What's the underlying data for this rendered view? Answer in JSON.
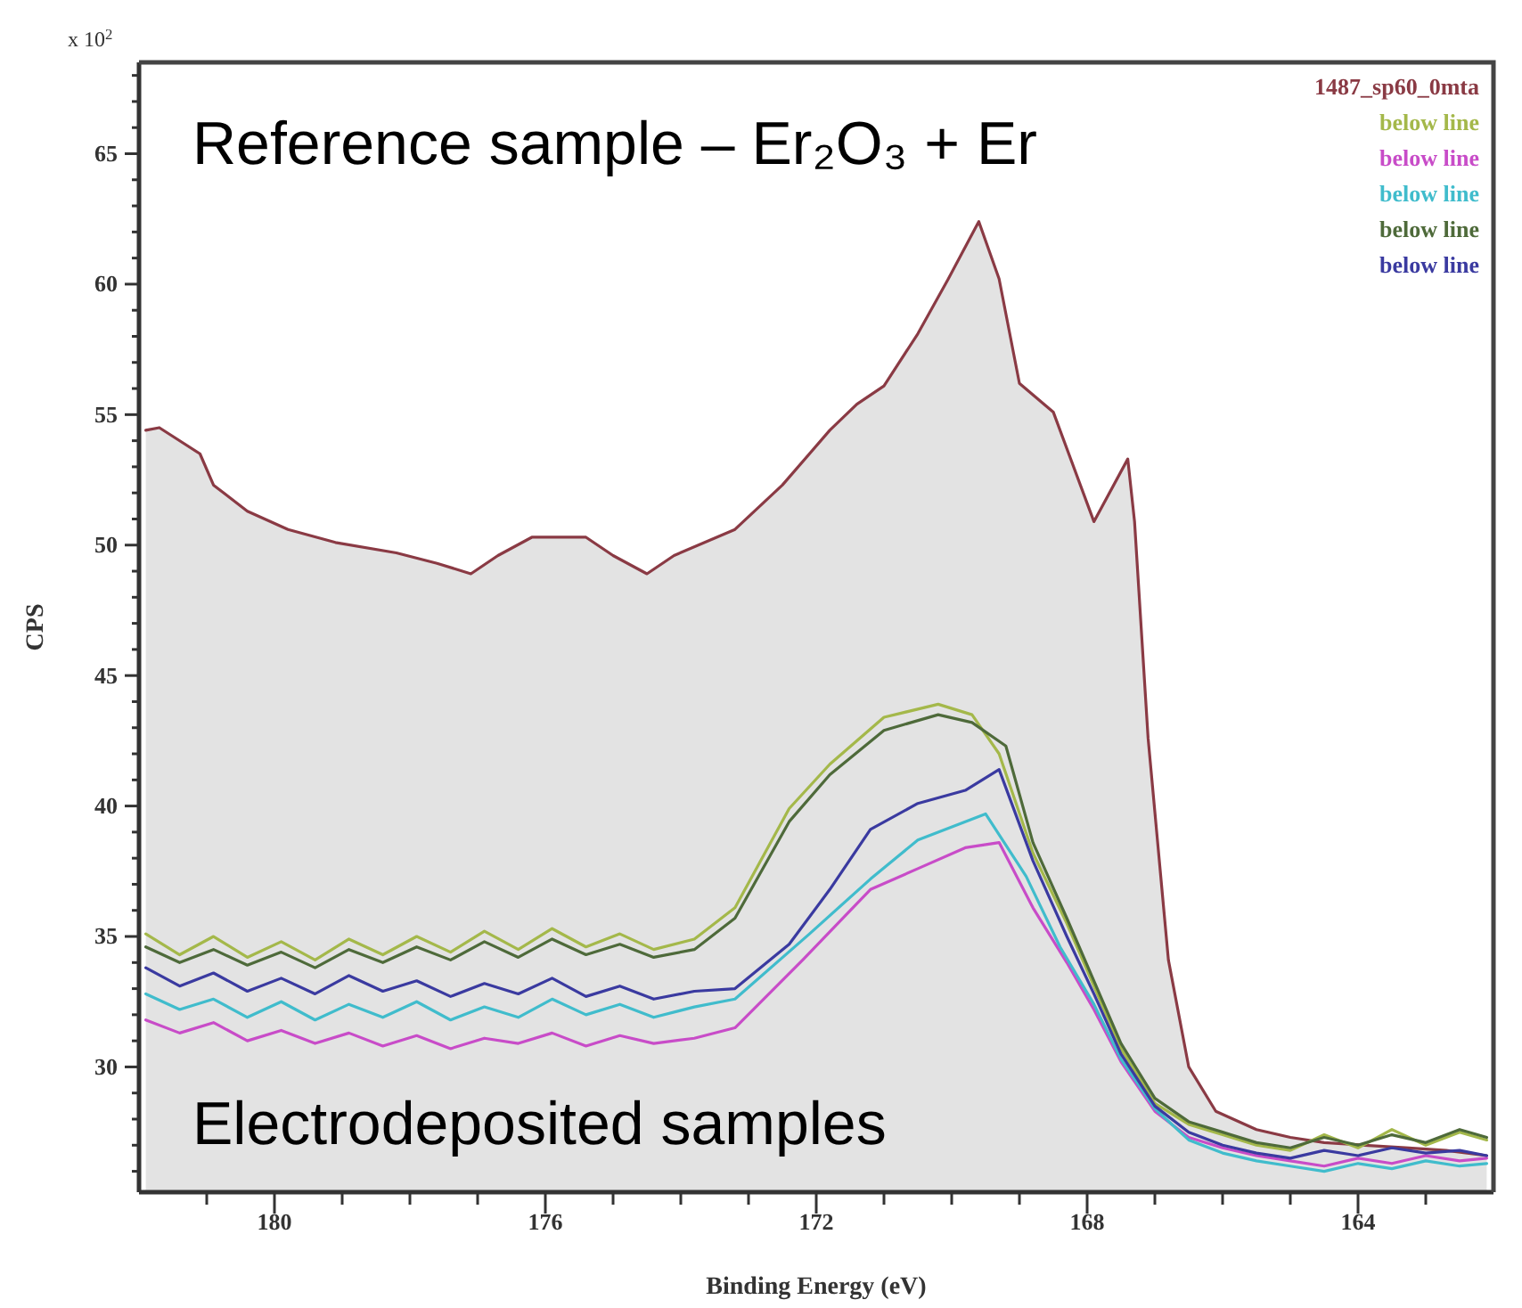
{
  "chart_data": {
    "type": "line",
    "xlabel": "Binding Energy (eV)",
    "ylabel": "CPS",
    "annotations": [
      "Reference sample – Er₂O₃ + Er",
      "Electrodeposited samples",
      "x 10$^{2}$"
    ],
    "xlim": [
      182,
      162
    ],
    "ylim": [
      25.2,
      68.5
    ],
    "xticks": [
      {
        "value": 181,
        "label": null
      },
      180,
      {
        "value": 179,
        "label": null
      },
      {
        "value": 178,
        "label": null
      },
      {
        "value": 177,
        "label": null
      },
      176,
      {
        "value": 175,
        "label": null
      },
      {
        "value": 174,
        "label": null
      },
      {
        "value": 173,
        "label": null
      },
      172,
      {
        "value": 171,
        "label": null
      },
      {
        "value": 170,
        "label": null
      },
      {
        "value": 169,
        "label": null
      },
      168,
      {
        "value": 167,
        "label": null
      },
      {
        "value": 166,
        "label": null
      },
      {
        "value": 165,
        "label": null
      },
      164,
      {
        "value": 163,
        "label": null
      }
    ],
    "yticks": [
      {
        "value": 26,
        "label": null
      },
      {
        "value": 27,
        "label": null
      },
      {
        "value": 28,
        "label": null
      },
      {
        "value": 29,
        "label": null
      },
      30,
      {
        "value": 31,
        "label": null
      },
      {
        "value": 32,
        "label": null
      },
      {
        "value": 33,
        "label": null
      },
      {
        "value": 34,
        "label": null
      },
      35,
      {
        "value": 36,
        "label": null
      },
      {
        "value": 37,
        "label": null
      },
      {
        "value": 38,
        "label": null
      },
      {
        "value": 39,
        "label": null
      },
      40,
      {
        "value": 41,
        "label": null
      },
      {
        "value": 42,
        "label": null
      },
      {
        "value": 43,
        "label": null
      },
      {
        "value": 44,
        "label": null
      },
      45,
      {
        "value": 46,
        "label": null
      },
      {
        "value": 47,
        "label": null
      },
      {
        "value": 48,
        "label": null
      },
      {
        "value": 49,
        "label": null
      },
      50,
      {
        "value": 51,
        "label": null
      },
      {
        "value": 52,
        "label": null
      },
      {
        "value": 53,
        "label": null
      },
      {
        "value": 54,
        "label": null
      },
      55,
      {
        "value": 56,
        "label": null
      },
      {
        "value": 57,
        "label": null
      },
      {
        "value": 58,
        "label": null
      },
      {
        "value": 59,
        "label": null
      },
      60,
      {
        "value": 61,
        "label": null
      },
      {
        "value": 62,
        "label": null
      },
      {
        "value": 63,
        "label": null
      },
      {
        "value": 64,
        "label": null
      },
      65,
      {
        "value": 66,
        "label": null
      },
      {
        "value": 67,
        "label": null
      },
      {
        "value": 68,
        "label": null
      }
    ],
    "legend": "top right",
    "series": [
      {
        "name": "1487_sp60_0mta",
        "type": "area",
        "color": "#8a3a44",
        "x": [
          181.9,
          181.7,
          181.1,
          180.9,
          180.4,
          179.8,
          179.1,
          178.2,
          177.6,
          177.1,
          176.7,
          176.2,
          175.4,
          175.0,
          174.5,
          174.1,
          173.2,
          172.5,
          171.8,
          171.4,
          171.0,
          170.5,
          170.05,
          169.6,
          169.3,
          169.0,
          168.5,
          167.9,
          167.4,
          167.3,
          167.1,
          166.8,
          166.5,
          166.1,
          165.5,
          165.0,
          164.5,
          163.9,
          163.3,
          162.7,
          162.1
        ],
        "values": [
          54.4,
          54.5,
          53.5,
          52.3,
          51.3,
          50.6,
          50.1,
          49.7,
          49.3,
          48.9,
          49.6,
          50.3,
          50.3,
          49.6,
          48.9,
          49.6,
          50.6,
          52.3,
          54.4,
          55.4,
          56.1,
          58.1,
          60.2,
          62.4,
          60.2,
          56.2,
          55.1,
          50.9,
          53.3,
          50.9,
          42.6,
          34.1,
          30.0,
          28.3,
          27.6,
          27.3,
          27.1,
          27.0,
          26.9,
          26.8,
          26.6
        ]
      },
      {
        "name": "below line",
        "color": "#a4b84a",
        "x": [
          181.9,
          181.4,
          180.9,
          180.4,
          179.9,
          179.4,
          178.9,
          178.4,
          177.9,
          177.4,
          176.9,
          176.4,
          175.9,
          175.4,
          174.9,
          174.4,
          173.8,
          173.2,
          172.4,
          171.8,
          171.0,
          170.2,
          169.7,
          169.3,
          168.8,
          168.3,
          167.9,
          167.5,
          167.0,
          166.5,
          166.0,
          165.5,
          165.0,
          164.5,
          164.0,
          163.5,
          163.0,
          162.5,
          162.1
        ],
        "values": [
          35.1,
          34.3,
          35.0,
          34.2,
          34.8,
          34.1,
          34.9,
          34.3,
          35.0,
          34.4,
          35.2,
          34.5,
          35.3,
          34.6,
          35.1,
          34.5,
          34.9,
          36.1,
          39.9,
          41.6,
          43.4,
          43.9,
          43.5,
          42.0,
          38.2,
          35.5,
          33.1,
          30.7,
          28.6,
          27.8,
          27.4,
          27.0,
          26.8,
          27.4,
          26.9,
          27.6,
          27.0,
          27.5,
          27.2
        ]
      },
      {
        "name": "below line",
        "color": "#c84cc8",
        "x": [
          181.9,
          181.4,
          180.9,
          180.4,
          179.9,
          179.4,
          178.9,
          178.4,
          177.9,
          177.4,
          176.9,
          176.4,
          175.9,
          175.4,
          174.9,
          174.4,
          173.8,
          173.2,
          172.2,
          171.2,
          170.5,
          169.8,
          169.3,
          168.8,
          168.3,
          167.9,
          167.5,
          167.0,
          166.5,
          166.0,
          165.5,
          165.0,
          164.5,
          164.0,
          163.5,
          163.0,
          162.5,
          162.1
        ],
        "values": [
          31.8,
          31.3,
          31.7,
          31.0,
          31.4,
          30.9,
          31.3,
          30.8,
          31.2,
          30.7,
          31.1,
          30.9,
          31.3,
          30.8,
          31.2,
          30.9,
          31.1,
          31.5,
          34.1,
          36.8,
          37.6,
          38.4,
          38.6,
          36.1,
          34.0,
          32.2,
          30.2,
          28.3,
          27.3,
          26.9,
          26.6,
          26.4,
          26.2,
          26.5,
          26.3,
          26.6,
          26.4,
          26.5
        ]
      },
      {
        "name": "below line",
        "color": "#40bccc",
        "x": [
          181.9,
          181.4,
          180.9,
          180.4,
          179.9,
          179.4,
          178.9,
          178.4,
          177.9,
          177.4,
          176.9,
          176.4,
          175.9,
          175.4,
          174.9,
          174.4,
          173.8,
          173.2,
          172.1,
          171.2,
          170.5,
          169.5,
          168.9,
          168.4,
          167.9,
          167.5,
          167.0,
          166.5,
          166.0,
          165.5,
          165.0,
          164.5,
          164.0,
          163.5,
          163.0,
          162.5,
          162.1
        ],
        "values": [
          32.8,
          32.2,
          32.6,
          31.9,
          32.5,
          31.8,
          32.4,
          31.9,
          32.5,
          31.8,
          32.3,
          31.9,
          32.6,
          32.0,
          32.4,
          31.9,
          32.3,
          32.6,
          35.1,
          37.2,
          38.7,
          39.7,
          37.3,
          34.6,
          32.4,
          30.3,
          28.4,
          27.2,
          26.7,
          26.4,
          26.2,
          26.0,
          26.3,
          26.1,
          26.4,
          26.2,
          26.3
        ]
      },
      {
        "name": "below line",
        "color": "#4e6a3a",
        "x": [
          181.9,
          181.4,
          180.9,
          180.4,
          179.9,
          179.4,
          178.9,
          178.4,
          177.9,
          177.4,
          176.9,
          176.4,
          175.9,
          175.4,
          174.9,
          174.4,
          173.8,
          173.2,
          172.4,
          171.8,
          171.0,
          170.2,
          169.7,
          169.2,
          168.8,
          168.3,
          167.9,
          167.5,
          167.0,
          166.5,
          166.0,
          165.5,
          165.0,
          164.5,
          164.0,
          163.5,
          163.0,
          162.5,
          162.1
        ],
        "values": [
          34.6,
          34.0,
          34.5,
          33.9,
          34.4,
          33.8,
          34.5,
          34.0,
          34.6,
          34.1,
          34.8,
          34.2,
          34.9,
          34.3,
          34.7,
          34.2,
          34.5,
          35.7,
          39.4,
          41.2,
          42.9,
          43.5,
          43.2,
          42.3,
          38.6,
          35.7,
          33.3,
          30.9,
          28.8,
          27.9,
          27.5,
          27.1,
          26.9,
          27.3,
          27.0,
          27.4,
          27.1,
          27.6,
          27.3
        ]
      },
      {
        "name": "below line",
        "color": "#3a3aa0",
        "x": [
          181.9,
          181.4,
          180.9,
          180.4,
          179.9,
          179.4,
          178.9,
          178.4,
          177.9,
          177.4,
          176.9,
          176.4,
          175.9,
          175.4,
          174.9,
          174.4,
          173.8,
          173.2,
          172.4,
          171.8,
          171.2,
          170.5,
          169.8,
          169.3,
          168.8,
          168.3,
          167.9,
          167.5,
          167.0,
          166.5,
          166.0,
          165.5,
          165.0,
          164.5,
          164.0,
          163.5,
          163.0,
          162.5,
          162.1
        ],
        "values": [
          33.8,
          33.1,
          33.6,
          32.9,
          33.4,
          32.8,
          33.5,
          32.9,
          33.3,
          32.7,
          33.2,
          32.8,
          33.4,
          32.7,
          33.1,
          32.6,
          32.9,
          33.0,
          34.7,
          36.8,
          39.1,
          40.1,
          40.6,
          41.4,
          37.9,
          35.0,
          32.8,
          30.5,
          28.5,
          27.5,
          27.0,
          26.7,
          26.5,
          26.8,
          26.6,
          26.9,
          26.7,
          26.8,
          26.6
        ]
      }
    ]
  }
}
